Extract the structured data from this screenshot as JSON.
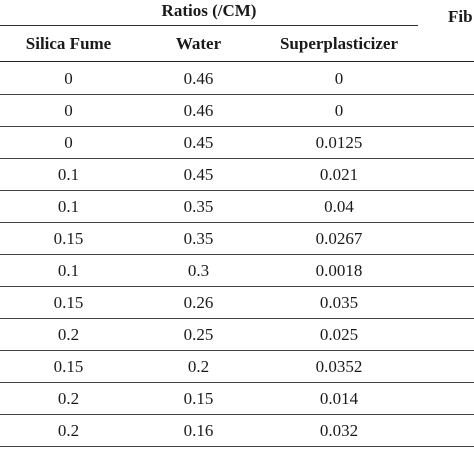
{
  "table": {
    "group_header": "Ratios (/CM)",
    "clipped_header": "Fib",
    "columns": [
      "Silica Fume",
      "Water",
      "Superplasticizer"
    ],
    "rows": [
      [
        "0",
        "0.46",
        "0"
      ],
      [
        "0",
        "0.46",
        "0"
      ],
      [
        "0",
        "0.45",
        "0.0125"
      ],
      [
        "0.1",
        "0.45",
        "0.021"
      ],
      [
        "0.1",
        "0.35",
        "0.04"
      ],
      [
        "0.15",
        "0.35",
        "0.0267"
      ],
      [
        "0.1",
        "0.3",
        "0.0018"
      ],
      [
        "0.15",
        "0.26",
        "0.035"
      ],
      [
        "0.2",
        "0.25",
        "0.025"
      ],
      [
        "0.15",
        "0.2",
        "0.0352"
      ],
      [
        "0.2",
        "0.15",
        "0.014"
      ],
      [
        "0.2",
        "0.16",
        "0.032"
      ]
    ]
  }
}
